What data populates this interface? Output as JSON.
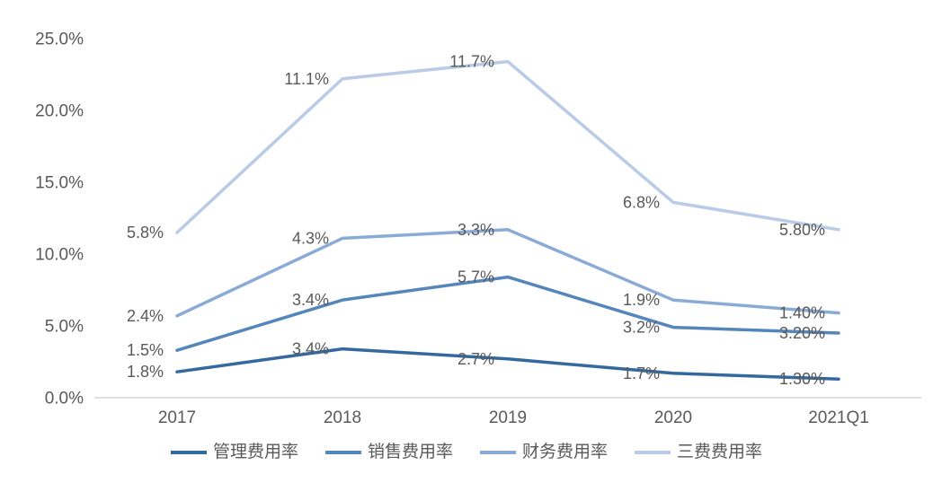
{
  "page": {
    "background_color": "#ffffff",
    "text_color": "#595959",
    "axis_line_color": "#d6d6d6"
  },
  "chart_data": {
    "type": "line",
    "stacked": true,
    "title": "",
    "xlabel": "",
    "ylabel": "",
    "categories": [
      "2017",
      "2018",
      "2019",
      "2020",
      "2021Q1"
    ],
    "series": [
      {
        "name": "管理费用率",
        "color": "#33699e",
        "values": [
          1.8,
          3.4,
          2.7,
          1.7,
          1.3
        ],
        "labels": [
          "1.8%",
          "3.4%",
          "2.7%",
          "1.7%",
          "1.30%"
        ]
      },
      {
        "name": "销售费用率",
        "color": "#5586bb",
        "values": [
          1.5,
          3.4,
          5.7,
          3.2,
          3.2
        ],
        "labels": [
          "1.5%",
          "3.4%",
          "5.7%",
          "3.2%",
          "3.20%"
        ]
      },
      {
        "name": "财务费用率",
        "color": "#8aabd5",
        "values": [
          2.4,
          4.3,
          3.3,
          1.9,
          1.4
        ],
        "labels": [
          "2.4%",
          "4.3%",
          "3.3%",
          "1.9%",
          "1.40%"
        ]
      },
      {
        "name": "三费费用率",
        "color": "#b9cbe6",
        "values": [
          5.8,
          11.1,
          11.7,
          6.8,
          5.8
        ],
        "labels": [
          "5.8%",
          "11.1%",
          "11.7%",
          "6.8%",
          "5.80%"
        ]
      }
    ],
    "y_ticks": [
      {
        "value": 0,
        "label": "0.0%"
      },
      {
        "value": 5,
        "label": "5.0%"
      },
      {
        "value": 10,
        "label": "10.0%"
      },
      {
        "value": 15,
        "label": "15.0%"
      },
      {
        "value": 20,
        "label": "20.0%"
      },
      {
        "value": 25,
        "label": "25.0%"
      }
    ],
    "ylim": [
      0,
      25
    ],
    "grid": false,
    "legend_position": "bottom"
  }
}
